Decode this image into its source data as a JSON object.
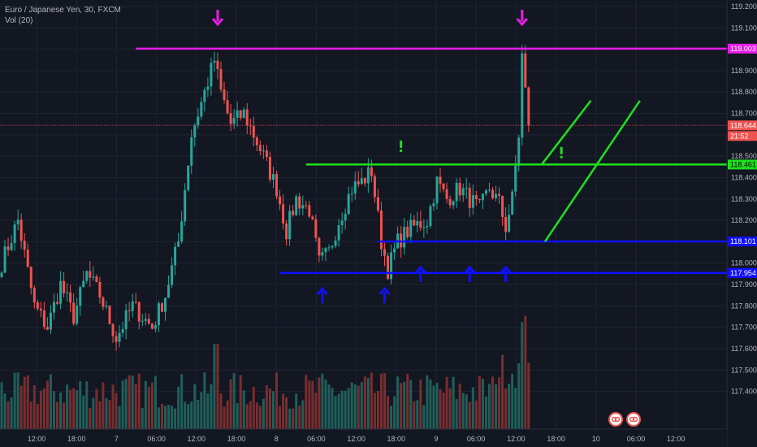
{
  "legend": {
    "symbol": "Euro / Japanese Yen, 30, FXCM",
    "volume": "Vol (20)"
  },
  "colors": {
    "background": "#131722",
    "grid": "#1f2433",
    "up": "#26a69a",
    "down": "#ef5350",
    "vol_up": "#1f5f5a",
    "vol_down": "#7a2d2f",
    "resistance": "#e81ce8",
    "support": "#1010ff",
    "trend": "#1ee01e",
    "price_line": "#ef5350"
  },
  "chart_data": {
    "type": "candlestick",
    "y_range": [
      117.33,
      119.2
    ],
    "y_ticks": [
      "119.200",
      "119.100",
      "119.000",
      "118.900",
      "118.800",
      "118.700",
      "118.600",
      "118.500",
      "118.400",
      "118.300",
      "118.200",
      "118.100",
      "118.000",
      "117.900",
      "117.800",
      "117.700",
      "117.600",
      "117.500",
      "117.400"
    ],
    "x_ticks": [
      "12:00",
      "18:00",
      "7",
      "06:00",
      "12:00",
      "18:00",
      "8",
      "06:00",
      "12:00",
      "18:00",
      "9",
      "06:00",
      "12:00",
      "18:00",
      "10",
      "06:00",
      "12:00"
    ],
    "bars_total": 214,
    "current_price": "118.644",
    "countdown": "21:52",
    "levels": [
      {
        "name": "resistance",
        "value": 119.003,
        "label": "119.003",
        "from_bar": 41
      },
      {
        "name": "green-level",
        "value": 118.461,
        "label": "118.461",
        "from_bar": 93
      },
      {
        "name": "support-upper",
        "value": 118.101,
        "label": "118.101",
        "from_bar": 115
      },
      {
        "name": "support-lower",
        "value": 117.954,
        "label": "117.954",
        "from_bar": 85
      }
    ],
    "trend_lines": [
      {
        "x1": 165,
        "y1": 118.461,
        "x2": 180,
        "y2": 118.76
      },
      {
        "x1": 166,
        "y1": 118.101,
        "x2": 195,
        "y2": 118.76
      }
    ],
    "arrows_down": [
      {
        "bar": 66,
        "price": 119.22
      },
      {
        "bar": 159,
        "price": 119.22
      }
    ],
    "arrows_up": [
      {
        "bar": 98,
        "price": 117.88
      },
      {
        "bar": 117,
        "price": 117.88
      },
      {
        "bar": 128,
        "price": 117.98
      },
      {
        "bar": 143,
        "price": 117.98
      },
      {
        "bar": 154,
        "price": 117.98
      }
    ],
    "exclamations": [
      {
        "bar": 122,
        "price": 118.52
      },
      {
        "bar": 171,
        "price": 118.49
      }
    ],
    "anchors": [
      [
        0,
        118.0
      ],
      [
        5,
        118.2
      ],
      [
        10,
        117.8
      ],
      [
        14,
        117.7
      ],
      [
        18,
        117.9
      ],
      [
        22,
        117.75
      ],
      [
        26,
        117.95
      ],
      [
        30,
        117.85
      ],
      [
        35,
        117.65
      ],
      [
        40,
        117.8
      ],
      [
        46,
        117.7
      ],
      [
        50,
        117.85
      ],
      [
        54,
        118.1
      ],
      [
        58,
        118.6
      ],
      [
        62,
        118.8
      ],
      [
        65,
        118.95
      ],
      [
        67,
        118.8
      ],
      [
        70,
        118.65
      ],
      [
        74,
        118.7
      ],
      [
        77,
        118.6
      ],
      [
        80,
        118.5
      ],
      [
        84,
        118.35
      ],
      [
        87,
        118.15
      ],
      [
        90,
        118.3
      ],
      [
        94,
        118.25
      ],
      [
        97,
        118.0
      ],
      [
        100,
        118.05
      ],
      [
        103,
        118.2
      ],
      [
        107,
        118.35
      ],
      [
        110,
        118.38
      ],
      [
        113,
        118.43
      ],
      [
        116,
        118.1
      ],
      [
        118,
        117.97
      ],
      [
        121,
        118.1
      ],
      [
        124,
        118.15
      ],
      [
        127,
        118.18
      ],
      [
        130,
        118.2
      ],
      [
        133,
        118.38
      ],
      [
        136,
        118.3
      ],
      [
        140,
        118.35
      ],
      [
        143,
        118.3
      ],
      [
        146,
        118.25
      ],
      [
        149,
        118.35
      ],
      [
        152,
        118.28
      ],
      [
        154,
        118.17
      ],
      [
        156,
        118.3
      ],
      [
        158,
        118.6
      ],
      [
        159,
        118.97
      ],
      [
        160,
        118.8
      ],
      [
        161,
        118.644
      ]
    ]
  },
  "attribution": {
    "icons": [
      "gear-icon",
      "pair-icon"
    ]
  }
}
